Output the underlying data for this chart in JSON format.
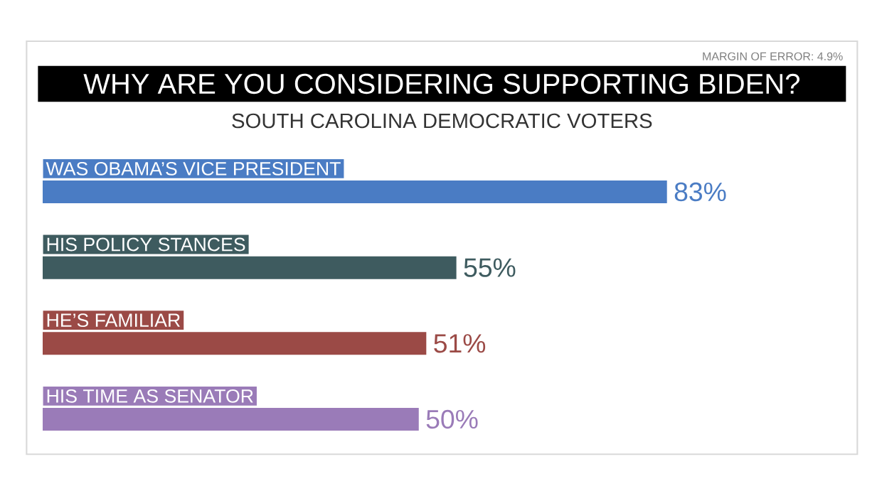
{
  "chart_data": {
    "type": "bar",
    "orientation": "horizontal",
    "title": "WHY ARE YOU CONSIDERING SUPPORTING BIDEN?",
    "subtitle": "SOUTH CAROLINA DEMOCRATIC VOTERS",
    "annotations": [
      "MARGIN OF ERROR: 4.9%"
    ],
    "categories": [
      "WAS OBAMA’S VICE PRESIDENT",
      "HIS POLICY STANCES",
      "HE’S FAMILIAR",
      "HIS TIME AS SENATOR"
    ],
    "values": [
      83,
      55,
      51,
      50
    ],
    "value_labels": [
      "83%",
      "55%",
      "51%",
      "50%"
    ],
    "colors": [
      "#4a7cc4",
      "#3e5b5f",
      "#9b4a46",
      "#9a7bb8"
    ]
  }
}
